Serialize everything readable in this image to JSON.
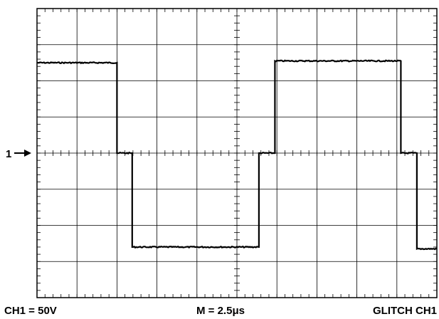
{
  "scope": {
    "marker_label": "1",
    "channel_scale": "CH1 = 50V",
    "time_scale": "M = 2.5μs",
    "trigger_mode": "GLITCH  CH1"
  },
  "chart_data": {
    "type": "line",
    "title": "",
    "xlabel": "",
    "ylabel": "",
    "x_unit": "divisions",
    "y_unit": "divisions",
    "xlim": [
      0,
      10
    ],
    "ylim": [
      -4,
      4
    ],
    "grid": true,
    "series": [
      {
        "color": "#000000",
        "x": [
          0.0,
          2.0,
          2.0,
          2.38,
          2.38,
          5.55,
          5.55,
          5.95,
          5.95,
          9.1,
          9.1,
          9.5,
          9.5,
          10.0
        ],
        "y": [
          2.5,
          2.5,
          0.0,
          0.0,
          -2.6,
          -2.6,
          0.0,
          0.0,
          2.55,
          2.55,
          0.0,
          0.0,
          -2.65,
          -2.65
        ]
      }
    ]
  }
}
